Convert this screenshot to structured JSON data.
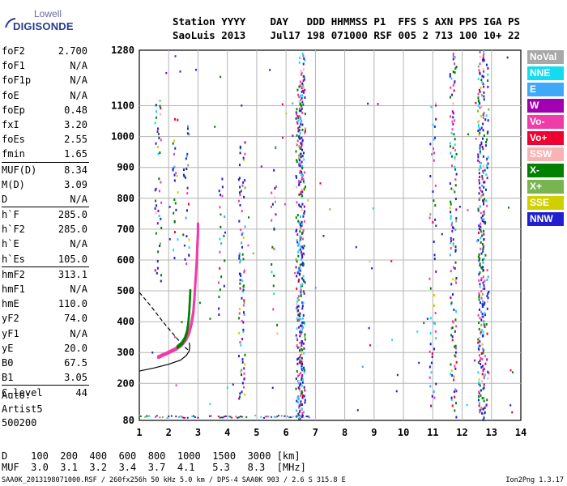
{
  "logo": {
    "line1": "Lowell",
    "line2": "DIGISONDE"
  },
  "header": {
    "labels": [
      "Station",
      "YYYY",
      "DAY",
      "DDD",
      "HHMMSS",
      "P1",
      "FFS",
      "S",
      "AXN",
      "PPS",
      "IGA",
      "PS"
    ],
    "values": [
      "SaoLuis",
      "2013",
      "Jul17",
      "198",
      "071000",
      "RSF",
      "005",
      "2",
      "713",
      "100",
      "10+",
      "22"
    ]
  },
  "params_group1": [
    {
      "name": "foF2",
      "value": "2.700"
    },
    {
      "name": "foF1",
      "value": "N/A"
    },
    {
      "name": "foF1p",
      "value": "N/A"
    },
    {
      "name": "foE",
      "value": "N/A"
    },
    {
      "name": "foEp",
      "value": "0.48"
    },
    {
      "name": "fxI",
      "value": "3.20"
    },
    {
      "name": "foEs",
      "value": "2.55"
    },
    {
      "name": "fmin",
      "value": "1.65"
    }
  ],
  "params_group2": [
    {
      "name": "MUF(D)",
      "value": "8.34"
    },
    {
      "name": "M(D)",
      "value": "3.09"
    },
    {
      "name": "D",
      "value": "N/A"
    }
  ],
  "params_group3": [
    {
      "name": "h`F",
      "value": "285.0"
    },
    {
      "name": "h`F2",
      "value": "285.0"
    },
    {
      "name": "h`E",
      "value": "N/A"
    },
    {
      "name": "h`Es",
      "value": "105.0"
    }
  ],
  "params_group4": [
    {
      "name": "hmF2",
      "value": "313.1"
    },
    {
      "name": "hmF1",
      "value": "N/A"
    },
    {
      "name": "hmE",
      "value": "110.0"
    },
    {
      "name": "yF2",
      "value": "74.0"
    },
    {
      "name": "yF1",
      "value": "N/A"
    },
    {
      "name": "yE",
      "value": "20.0"
    },
    {
      "name": "B0",
      "value": "67.5"
    },
    {
      "name": "B1",
      "value": "3.05"
    }
  ],
  "params_group5": [
    {
      "name": "C-level",
      "value": "44"
    }
  ],
  "auto": {
    "line1": "Auto:",
    "line2": "Artist5",
    "line3": "500200"
  },
  "legend": [
    {
      "label": "NoVal",
      "color": "#a8a8a8"
    },
    {
      "label": "NNE",
      "color": "#14dcf0"
    },
    {
      "label": "E",
      "color": "#40a8f8"
    },
    {
      "label": "W",
      "color": "#a000b0"
    },
    {
      "label": "Vo-",
      "color": "#f03ca8"
    },
    {
      "label": "Vo+",
      "color": "#f00030"
    },
    {
      "label": "SSW",
      "color": "#f8b4b4"
    },
    {
      "label": "X-",
      "color": "#008000"
    },
    {
      "label": "X+",
      "color": "#78b450"
    },
    {
      "label": "SSE",
      "color": "#d0d000"
    },
    {
      "label": "NNW",
      "color": "#2020d0"
    }
  ],
  "distance_table": {
    "row1_label": "D",
    "row1_values": [
      "100",
      "200",
      "400",
      "600",
      "800",
      "1000",
      "1500",
      "3000"
    ],
    "row1_unit": "[km]",
    "row2_label": "MUF",
    "row2_values": [
      "3.0",
      "3.1",
      "3.2",
      "3.4",
      "3.7",
      "4.1",
      "5.3",
      "8.3"
    ],
    "row2_unit": "[MHz]"
  },
  "footer": {
    "text": "SAA0K_2013198071000.RSF / 260fx256h 50 kHz 5.0 km / DPS-4 SAA0K 903 / 2.6 S 315.8 E",
    "version": "Ion2Png 1.3.17"
  },
  "chart_data": {
    "type": "scatter",
    "title": "",
    "xlabel": "",
    "ylabel": "",
    "xlim": [
      1,
      14
    ],
    "ylim": [
      80,
      1280
    ],
    "xticks": [
      1,
      2,
      3,
      4,
      5,
      6,
      7,
      8,
      9,
      10,
      11,
      12,
      13,
      14
    ],
    "yticks": [
      80,
      200,
      300,
      400,
      500,
      600,
      700,
      800,
      900,
      1000,
      1100,
      1280
    ],
    "grid": true,
    "trace_o": {
      "color": "#f03ca8",
      "x": [
        1.65,
        1.8,
        1.95,
        2.1,
        2.25,
        2.4,
        2.5,
        2.6,
        2.7,
        2.78,
        2.84,
        2.88,
        2.92,
        2.96,
        2.98,
        3.0,
        3.0
      ],
      "y": [
        285,
        292,
        298,
        305,
        312,
        322,
        332,
        345,
        365,
        395,
        430,
        480,
        540,
        600,
        650,
        690,
        720
      ]
    },
    "trace_x": {
      "color": "#008000",
      "x": [
        2.3,
        2.45,
        2.55,
        2.62,
        2.67,
        2.7,
        2.72,
        2.74
      ],
      "y": [
        318,
        330,
        345,
        365,
        395,
        430,
        465,
        505
      ]
    },
    "profile_solid": {
      "x": [
        1.0,
        1.5,
        2.0,
        2.4,
        2.6,
        2.7,
        2.72,
        2.7
      ],
      "y": [
        240,
        250,
        262,
        275,
        290,
        305,
        320,
        332
      ]
    },
    "profile_dashed": {
      "x": [
        1.0,
        1.4,
        1.8,
        2.2,
        2.5,
        2.7
      ],
      "y": [
        495,
        450,
        400,
        355,
        322,
        305
      ]
    },
    "columns": [
      {
        "x": 1.65,
        "y0": 520,
        "y1": 1110,
        "density": 0.35
      },
      {
        "x": 2.25,
        "y0": 600,
        "y1": 1060,
        "density": 0.25
      },
      {
        "x": 2.6,
        "y0": 560,
        "y1": 1050,
        "density": 0.25
      },
      {
        "x": 3.8,
        "y0": 420,
        "y1": 890,
        "density": 0.2
      },
      {
        "x": 4.5,
        "y0": 150,
        "y1": 1000,
        "density": 0.55
      },
      {
        "x": 5.6,
        "y0": 330,
        "y1": 980,
        "density": 0.15
      },
      {
        "x": 6.45,
        "y0": 80,
        "y1": 1170,
        "density": 0.85
      },
      {
        "x": 6.55,
        "y0": 80,
        "y1": 1270,
        "density": 0.8
      },
      {
        "x": 11.0,
        "y0": 90,
        "y1": 1120,
        "density": 0.2
      },
      {
        "x": 11.7,
        "y0": 90,
        "y1": 1270,
        "density": 0.55
      },
      {
        "x": 12.65,
        "y0": 80,
        "y1": 1280,
        "density": 0.9
      },
      {
        "x": 12.8,
        "y0": 90,
        "y1": 1260,
        "density": 0.4
      }
    ],
    "bottom_band": {
      "x0": 1.0,
      "x1": 6.8,
      "y": 88
    }
  }
}
